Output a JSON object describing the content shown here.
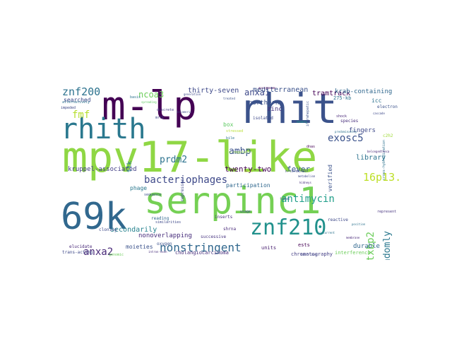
{
  "words": [
    {
      "text": "mpv17-like",
      "color": "#8fd744"
    },
    {
      "text": "rhit",
      "color": "#3b528b"
    },
    {
      "text": "m-lp",
      "color": "#440154"
    },
    {
      "text": "serpinc1",
      "color": "#75d054"
    },
    {
      "text": "69k",
      "color": "#31688e"
    },
    {
      "text": "rhith",
      "color": "#2a788e"
    },
    {
      "text": "znf210",
      "color": "#21918c"
    },
    {
      "text": "nonstringent",
      "color": "#31688e"
    },
    {
      "text": "bacteriophages",
      "color": "#3e4989"
    },
    {
      "text": "antimycin",
      "color": "#1f9e89"
    },
    {
      "text": "16p13.3",
      "color": "#bddf26"
    },
    {
      "text": "exosc5",
      "color": "#3b528b"
    },
    {
      "text": "znf200",
      "color": "#2c728e"
    },
    {
      "text": "stxbp2",
      "color": "#6ccd5a"
    },
    {
      "text": "anxa2",
      "color": "#482878"
    },
    {
      "text": "prdm2",
      "color": "#2c728e"
    },
    {
      "text": "ncoa3",
      "color": "#6ccd5a"
    },
    {
      "text": "anxa1",
      "color": "#3e4989"
    },
    {
      "text": "ambp",
      "color": "#3b528b"
    },
    {
      "text": "fmf",
      "color": "#b5de2b"
    },
    {
      "text": "randomly",
      "color": "#2a788e"
    },
    {
      "text": "fever",
      "color": "#38598c"
    },
    {
      "text": "twenty-two",
      "color": "#440154"
    },
    {
      "text": "thirty-seven",
      "color": "#3e4989"
    },
    {
      "text": "secondarily",
      "color": "#26828e"
    },
    {
      "text": "mediterranean",
      "color": "#3b528b"
    },
    {
      "text": "tramtrack",
      "color": "#440154"
    },
    {
      "text": "krab-containing",
      "color": "#31688e"
    },
    {
      "text": "library",
      "color": "#2c728e"
    },
    {
      "text": "fingers",
      "color": "#3e4989"
    },
    {
      "text": "zinc",
      "color": "#46337f"
    },
    {
      "text": "northern",
      "color": "#3b528b"
    },
    {
      "text": "durable",
      "color": "#31688e"
    },
    {
      "text": "kruppel-associated",
      "color": "#433e85"
    },
    {
      "text": "nonoverlapping",
      "color": "#472d7b"
    },
    {
      "text": "moieties",
      "color": "#3b528b"
    },
    {
      "text": "searched",
      "color": "#3e4989"
    },
    {
      "text": "ttk",
      "color": "#2a788e"
    },
    {
      "text": "participation",
      "color": "#31688e"
    },
    {
      "text": "box",
      "color": "#5ec962"
    },
    {
      "text": "phage",
      "color": "#2a788e"
    },
    {
      "text": "verified",
      "color": "#3b528b"
    },
    {
      "text": "interference",
      "color": "#6ccd5a"
    },
    {
      "text": "ests",
      "color": "#440154"
    },
    {
      "text": "units",
      "color": "#481f70"
    },
    {
      "text": "275-kb",
      "color": "#2c728e"
    },
    {
      "text": "chromatography",
      "color": "#433e85"
    },
    {
      "text": "cholangiocarcinoma",
      "color": "#472d7b"
    },
    {
      "text": "successive",
      "color": "#46337f"
    },
    {
      "text": "cloning",
      "color": "#3e4989"
    },
    {
      "text": "elucidate",
      "color": "#482878"
    },
    {
      "text": "trans-acting",
      "color": "#3e4989"
    },
    {
      "text": "oxygen",
      "color": "#3b528b"
    },
    {
      "text": "reading",
      "color": "#31688e"
    },
    {
      "text": "repressor",
      "color": "#3e4989"
    },
    {
      "text": "inserts",
      "color": "#472d7b"
    },
    {
      "text": "icc",
      "color": "#2c728e"
    },
    {
      "text": "electron",
      "color": "#3b528b"
    },
    {
      "text": "species",
      "color": "#472d7b"
    },
    {
      "text": "isolated",
      "color": "#3e4989"
    },
    {
      "text": "shrna",
      "color": "#482878"
    },
    {
      "text": "reactive",
      "color": "#3e4989"
    },
    {
      "text": "represent",
      "color": "#46337f"
    },
    {
      "text": "genomic",
      "color": "#6ccd5a"
    },
    {
      "text": "similarities",
      "color": "#3e4989"
    },
    {
      "text": "sequence",
      "color": "#3b528b"
    },
    {
      "text": "discrete",
      "color": "#433e85"
    },
    {
      "text": "basis",
      "color": "#2c728e"
    },
    {
      "text": "impeded",
      "color": "#3e4989"
    },
    {
      "text": "alternatively",
      "color": "#2c728e"
    },
    {
      "text": "stressed",
      "color": "#b5de2b"
    },
    {
      "text": "dnas",
      "color": "#440154"
    },
    {
      "text": "ovary",
      "color": "#1f9e89"
    },
    {
      "text": "shock",
      "color": "#482878"
    },
    {
      "text": "c2h2",
      "color": "#a0da39"
    },
    {
      "text": "intrahepatic",
      "color": "#3b528b"
    },
    {
      "text": "cis-regulatory",
      "color": "#8fd744"
    },
    {
      "text": "usage",
      "color": "#3e4989"
    },
    {
      "text": "duct",
      "color": "#b5de2b"
    },
    {
      "text": "bile",
      "color": "#2c728e"
    },
    {
      "text": "n-terminal",
      "color": "#3e4989"
    },
    {
      "text": "cross-hybridization",
      "color": "#2c728e"
    },
    {
      "text": "intron-exon",
      "color": "#472d7b"
    },
    {
      "text": "spreading",
      "color": "#5ec962"
    },
    {
      "text": "mrf1",
      "color": "#3e4989"
    },
    {
      "text": "treated",
      "color": "#3b528b"
    },
    {
      "text": "concurrent",
      "color": "#2c728e"
    },
    {
      "text": "belongedtheca",
      "color": "#482878"
    },
    {
      "text": "generation",
      "color": "#3e4989"
    },
    {
      "text": "aoridemide",
      "color": "#440154"
    },
    {
      "text": "telomeric",
      "color": "#3e4989"
    },
    {
      "text": "predominantly",
      "color": "#2c728e"
    },
    {
      "text": "frames",
      "color": "#3b528b"
    },
    {
      "text": "kidneys",
      "color": "#472d7b"
    },
    {
      "text": "metabolism",
      "color": "#3e4989"
    },
    {
      "text": "position",
      "color": "#2c728e"
    },
    {
      "text": "cascade",
      "color": "#3e4989"
    },
    {
      "text": "membrane",
      "color": "#482878"
    },
    {
      "text": "half-lives",
      "color": "#3e4989"
    }
  ]
}
